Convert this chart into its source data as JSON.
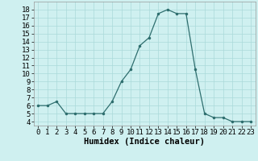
{
  "x": [
    0,
    1,
    2,
    3,
    4,
    5,
    6,
    7,
    8,
    9,
    10,
    11,
    12,
    13,
    14,
    15,
    16,
    17,
    18,
    19,
    20,
    21,
    22,
    23
  ],
  "y": [
    6,
    6,
    6.5,
    5,
    5,
    5,
    5,
    5,
    6.5,
    9,
    10.5,
    13.5,
    14.5,
    17.5,
    18,
    17.5,
    17.5,
    10.5,
    5,
    4.5,
    4.5,
    4,
    4,
    4
  ],
  "xlabel": "Humidex (Indice chaleur)",
  "xlim": [
    -0.5,
    23.5
  ],
  "ylim": [
    3.5,
    19
  ],
  "yticks": [
    4,
    5,
    6,
    7,
    8,
    9,
    10,
    11,
    12,
    13,
    14,
    15,
    16,
    17,
    18
  ],
  "xticks": [
    0,
    1,
    2,
    3,
    4,
    5,
    6,
    7,
    8,
    9,
    10,
    11,
    12,
    13,
    14,
    15,
    16,
    17,
    18,
    19,
    20,
    21,
    22,
    23
  ],
  "line_color": "#2e6e6e",
  "bg_color": "#cff0f0",
  "grid_color": "#aadada",
  "label_fontsize": 7.5,
  "tick_fontsize": 6.5
}
